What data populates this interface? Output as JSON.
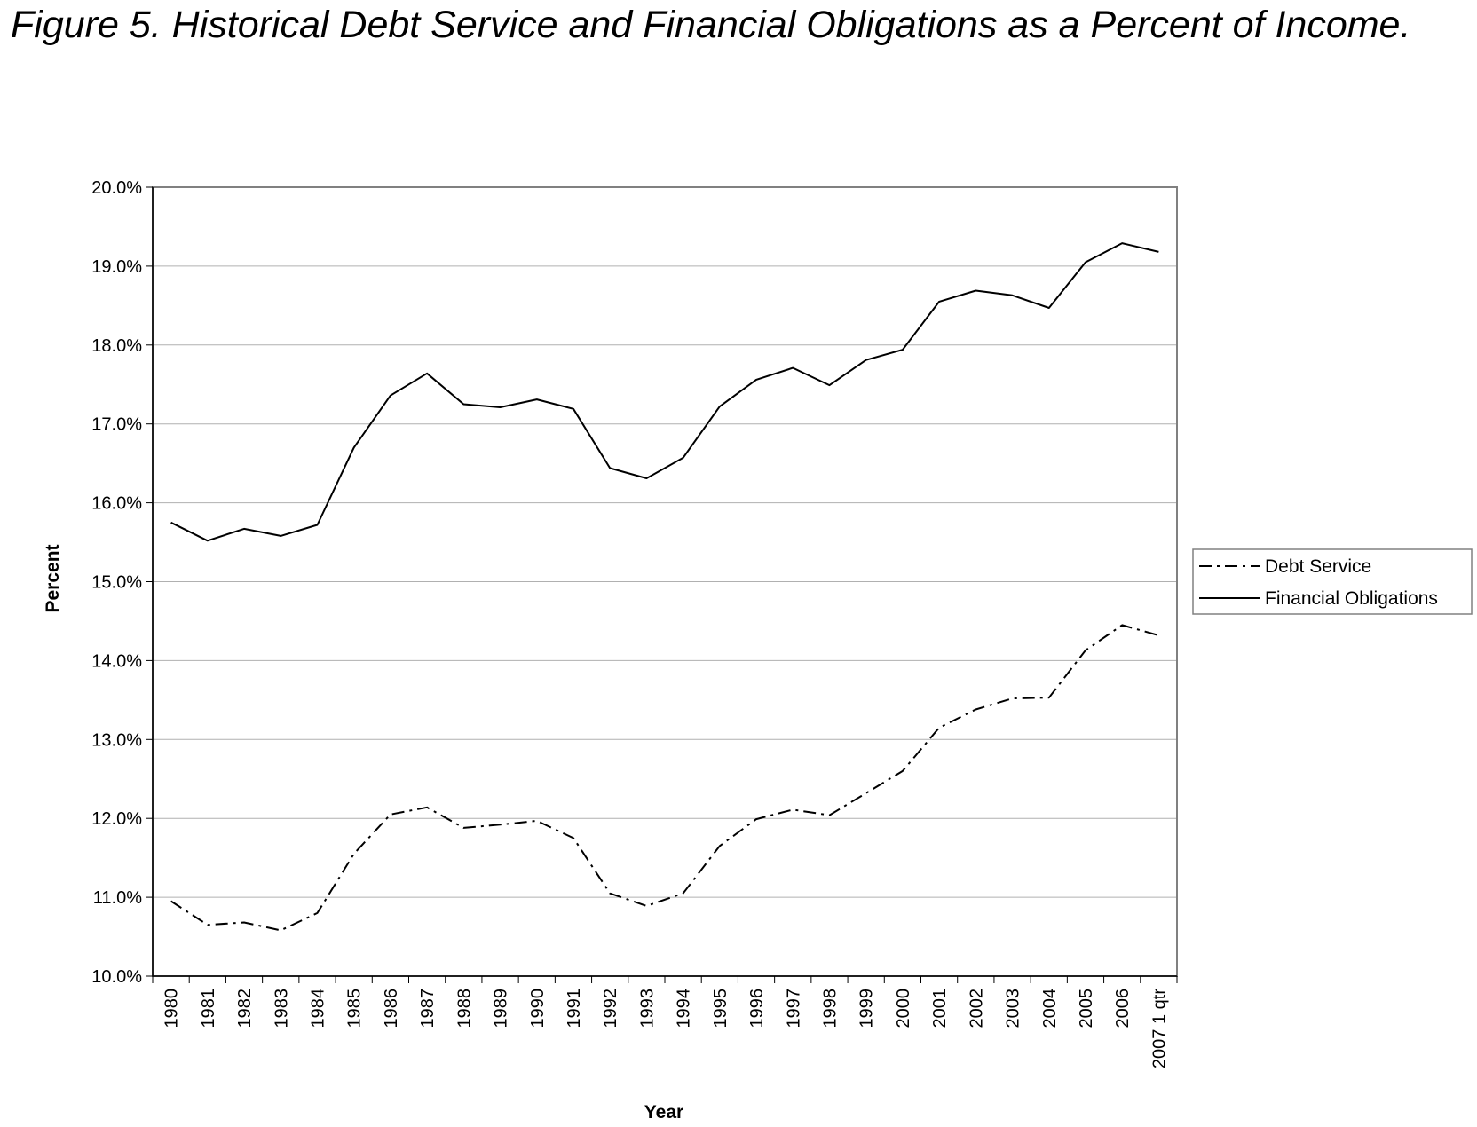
{
  "chart_data": {
    "type": "line",
    "title": "Figure 5. Historical Debt Service and Financial Obligations as a Percent of Income.",
    "xlabel": "Year",
    "ylabel": "Percent",
    "categories": [
      "1980",
      "1981",
      "1982",
      "1983",
      "1984",
      "1985",
      "1986",
      "1987",
      "1988",
      "1989",
      "1990",
      "1991",
      "1992",
      "1993",
      "1994",
      "1995",
      "1996",
      "1997",
      "1998",
      "1999",
      "2000",
      "2001",
      "2002",
      "2003",
      "2004",
      "2005",
      "2006",
      "2007 1 qtr"
    ],
    "ylim": [
      10.0,
      20.0
    ],
    "yticks": [
      "10.0%",
      "11.0%",
      "12.0%",
      "13.0%",
      "14.0%",
      "15.0%",
      "16.0%",
      "17.0%",
      "18.0%",
      "19.0%",
      "20.0%"
    ],
    "grid": true,
    "legend_position": "right",
    "series": [
      {
        "name": "Debt Service",
        "style": "dash-dot",
        "color": "#000000",
        "values": [
          10.95,
          10.65,
          10.68,
          10.58,
          10.8,
          11.55,
          12.05,
          12.14,
          11.88,
          11.92,
          11.97,
          11.75,
          11.05,
          10.89,
          11.05,
          11.65,
          11.99,
          12.11,
          12.04,
          12.32,
          12.6,
          13.15,
          13.38,
          13.52,
          13.53,
          14.13,
          14.45,
          14.32
        ]
      },
      {
        "name": "Financial Obligations",
        "style": "solid",
        "color": "#000000",
        "values": [
          15.75,
          15.52,
          15.67,
          15.58,
          15.72,
          16.7,
          17.36,
          17.64,
          17.25,
          17.21,
          17.31,
          17.19,
          16.44,
          16.31,
          16.57,
          17.22,
          17.56,
          17.71,
          17.49,
          17.81,
          17.94,
          18.55,
          18.69,
          18.63,
          18.47,
          19.05,
          19.29,
          19.18
        ]
      }
    ]
  }
}
